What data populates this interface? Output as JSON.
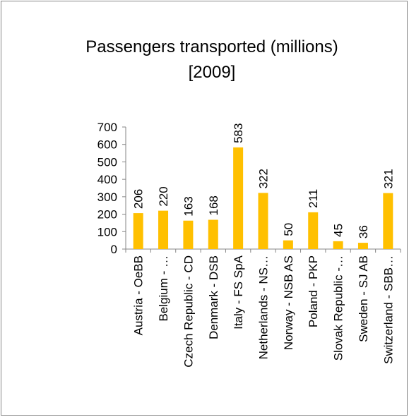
{
  "chart_data": {
    "type": "bar",
    "title": [
      "Passengers transported (millions)",
      "[2009]"
    ],
    "categories": [
      "Austria - OeBB",
      "Belgium - …",
      "Czech Republic - CD",
      "Denmark - DSB",
      "Italy - FS SpA",
      "Netherlands - NS…",
      "Norway - NSB AS",
      "Poland - PKP",
      "Slovak Republic -…",
      "Sweden - SJ AB",
      "Switzerland - SBB…"
    ],
    "values": [
      206,
      220,
      163,
      168,
      583,
      322,
      50,
      211,
      45,
      36,
      321
    ],
    "color": "#ffc000",
    "ylim": [
      0,
      700
    ],
    "yticks": [
      0,
      100,
      200,
      300,
      400,
      500,
      600,
      700
    ],
    "grid": false
  }
}
